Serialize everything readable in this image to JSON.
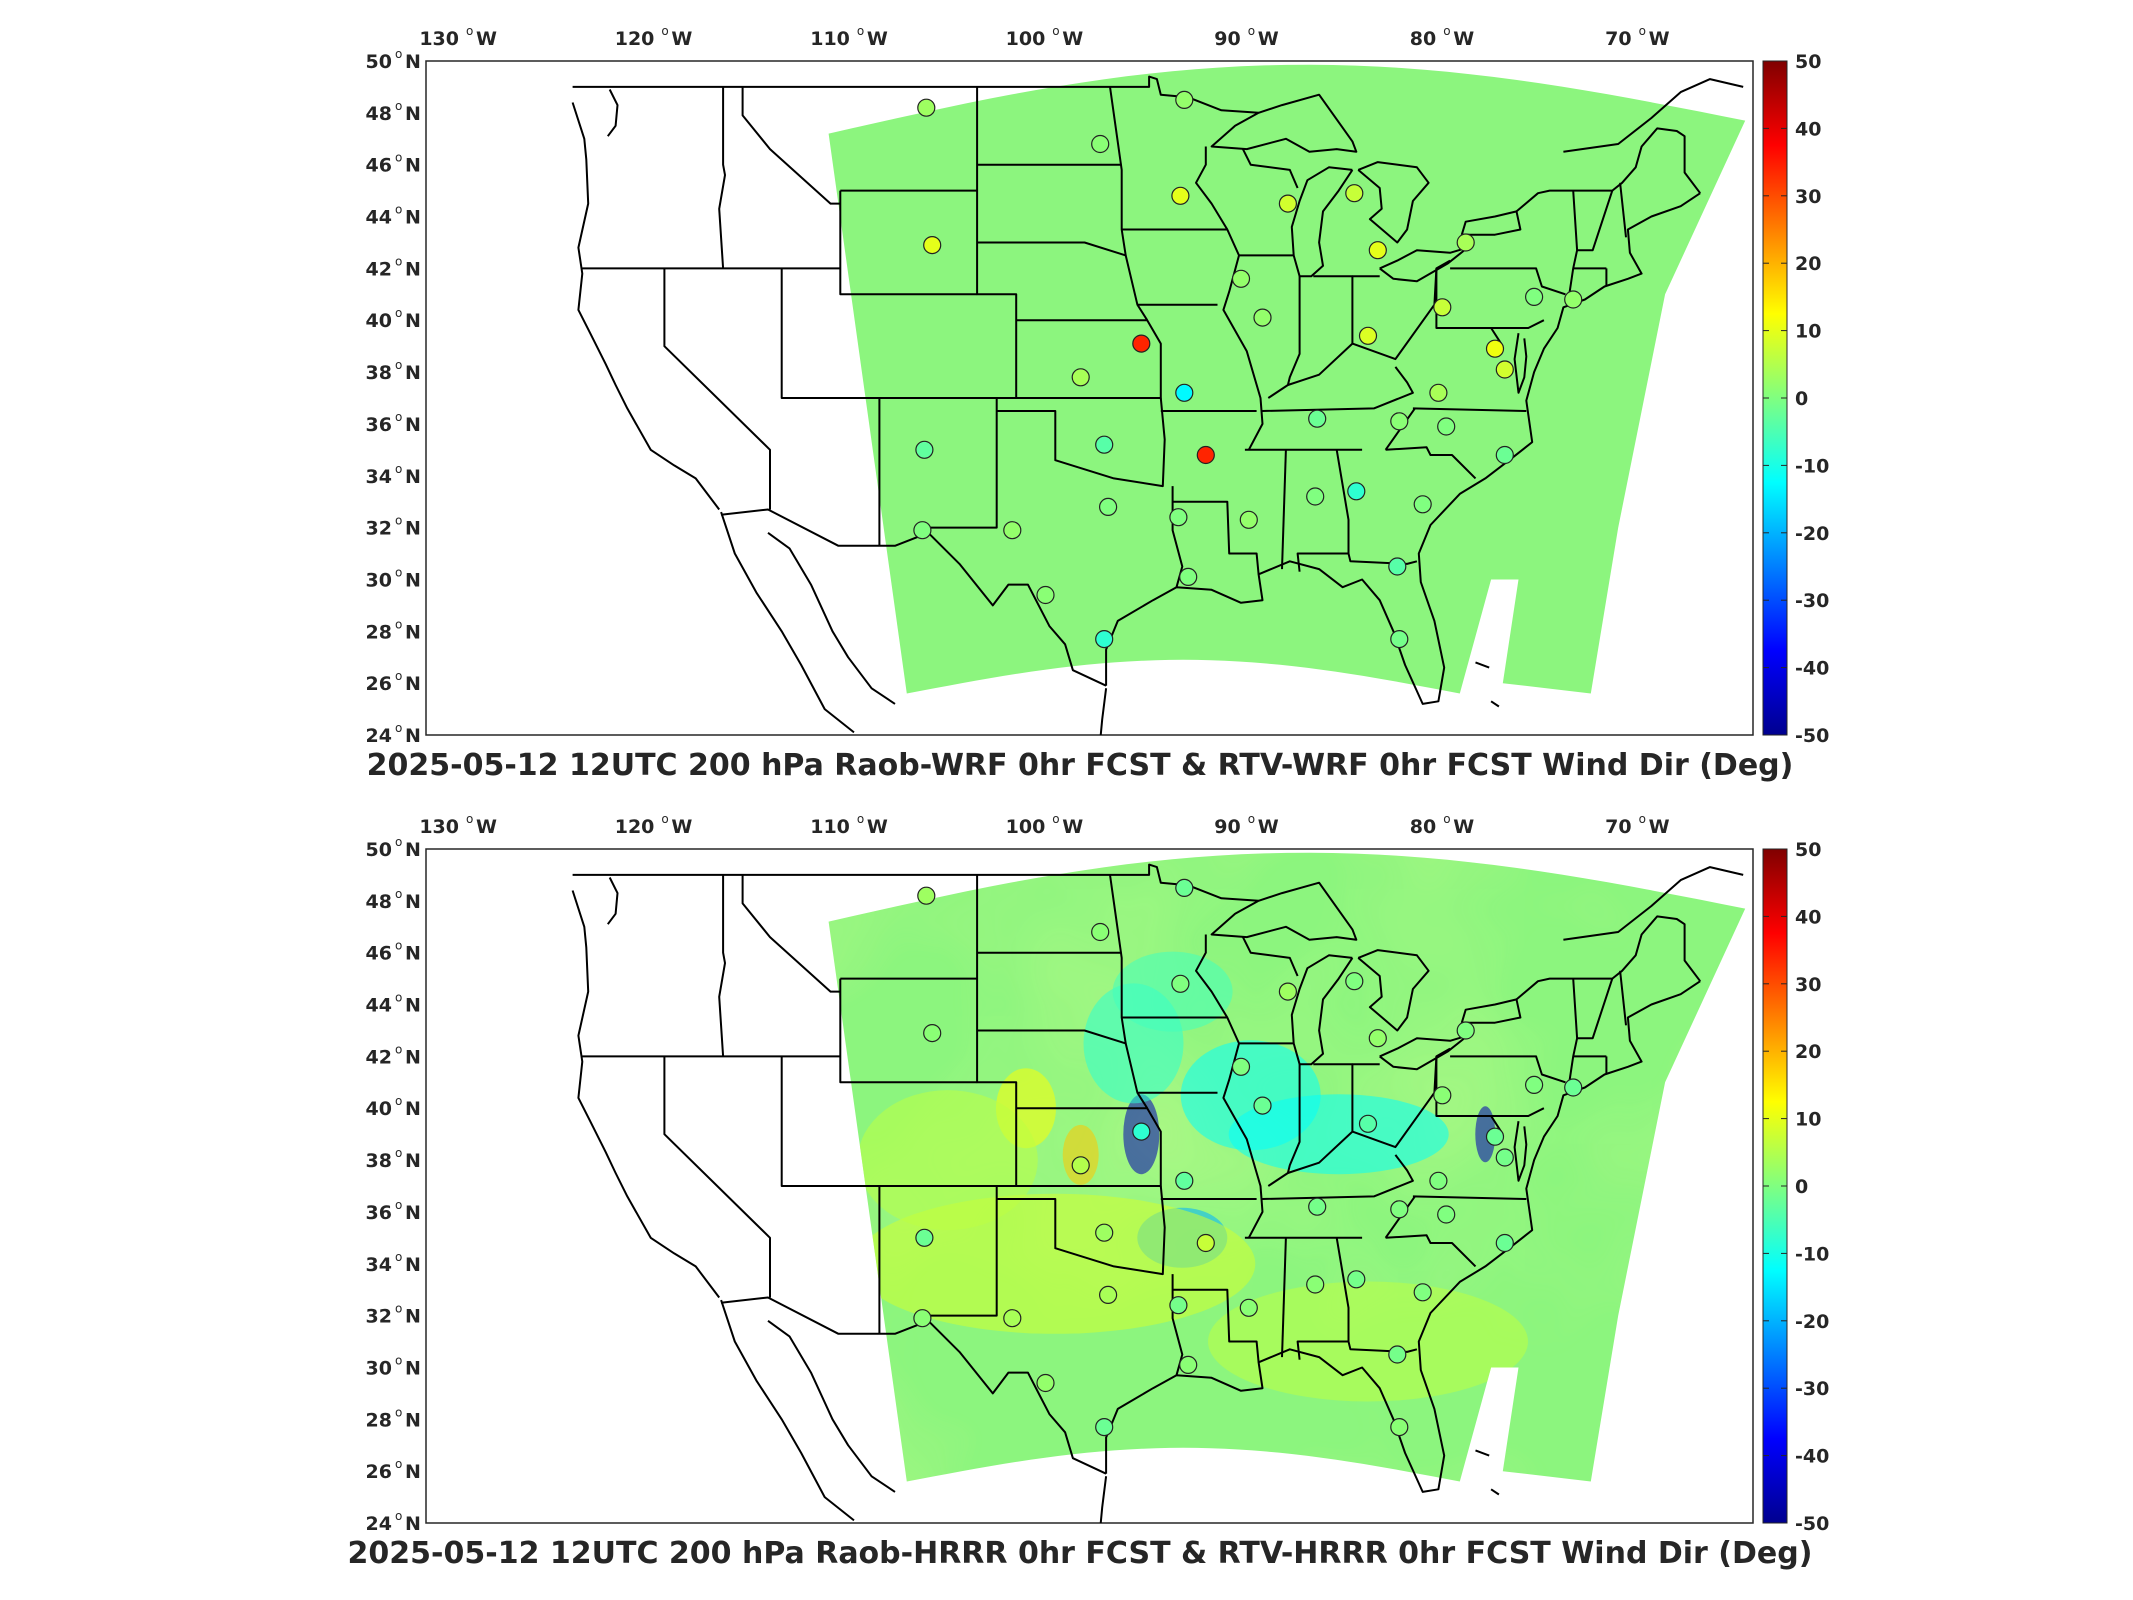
{
  "panels": [
    {
      "id": "wrf",
      "title": "2025-05-12 12UTC 200 hPa Raob-WRF 0hr FCST & RTV-WRF 0hr FCST Wind Dir (Deg)",
      "field": "uniform",
      "stations": [
        {
          "lon": -106.6,
          "lat": 48.2,
          "v": 3
        },
        {
          "lon": -97.7,
          "lat": 46.8,
          "v": 1
        },
        {
          "lon": -93.4,
          "lat": 48.5,
          "v": 2
        },
        {
          "lon": -93.6,
          "lat": 44.8,
          "v": 10
        },
        {
          "lon": -88.1,
          "lat": 44.5,
          "v": 8
        },
        {
          "lon": -84.7,
          "lat": 44.9,
          "v": 7
        },
        {
          "lon": -83.5,
          "lat": 42.7,
          "v": 10
        },
        {
          "lon": -79.0,
          "lat": 43.0,
          "v": 4
        },
        {
          "lon": -90.5,
          "lat": 41.6,
          "v": 2
        },
        {
          "lon": -89.4,
          "lat": 40.1,
          "v": 2
        },
        {
          "lon": -84.0,
          "lat": 39.4,
          "v": 9
        },
        {
          "lon": -80.2,
          "lat": 40.5,
          "v": 7
        },
        {
          "lon": -77.5,
          "lat": 38.9,
          "v": 11
        },
        {
          "lon": -75.5,
          "lat": 40.9,
          "v": 0
        },
        {
          "lon": -73.5,
          "lat": 40.8,
          "v": 2
        },
        {
          "lon": -95.6,
          "lat": 39.1,
          "v": 34
        },
        {
          "lon": -98.7,
          "lat": 37.8,
          "v": 4
        },
        {
          "lon": -93.4,
          "lat": 37.2,
          "v": -13
        },
        {
          "lon": -92.3,
          "lat": 34.8,
          "v": 34
        },
        {
          "lon": -97.5,
          "lat": 35.2,
          "v": -4
        },
        {
          "lon": -106.7,
          "lat": 35.0,
          "v": -3
        },
        {
          "lon": -97.3,
          "lat": 32.8,
          "v": 0
        },
        {
          "lon": -106.8,
          "lat": 31.9,
          "v": 0
        },
        {
          "lon": -102.2,
          "lat": 31.9,
          "v": 2
        },
        {
          "lon": -100.5,
          "lat": 29.4,
          "v": 1
        },
        {
          "lon": -97.5,
          "lat": 27.7,
          "v": -8
        },
        {
          "lon": -93.7,
          "lat": 32.4,
          "v": 0
        },
        {
          "lon": -93.2,
          "lat": 30.1,
          "v": 0
        },
        {
          "lon": -90.1,
          "lat": 32.3,
          "v": 2
        },
        {
          "lon": -86.7,
          "lat": 33.2,
          "v": 0
        },
        {
          "lon": -84.6,
          "lat": 33.4,
          "v": -8
        },
        {
          "lon": -86.6,
          "lat": 36.2,
          "v": -2
        },
        {
          "lon": -82.4,
          "lat": 36.1,
          "v": 1
        },
        {
          "lon": -80.4,
          "lat": 37.2,
          "v": 4
        },
        {
          "lon": -80.0,
          "lat": 35.9,
          "v": 0
        },
        {
          "lon": -81.2,
          "lat": 32.9,
          "v": 0
        },
        {
          "lon": -82.5,
          "lat": 30.5,
          "v": -4
        },
        {
          "lon": -82.4,
          "lat": 27.7,
          "v": -1
        },
        {
          "lon": -77.0,
          "lat": 34.8,
          "v": -2
        },
        {
          "lon": -106.3,
          "lat": 42.9,
          "v": 10
        },
        {
          "lon": -77.0,
          "lat": 38.1,
          "v": 8
        }
      ]
    },
    {
      "id": "hrrr",
      "title": "2025-05-12 12UTC 200 hPa Raob-HRRR 0hr FCST & RTV-HRRR 0hr FCST Wind Dir (Deg)",
      "field": "varied",
      "stations": [
        {
          "lon": -106.6,
          "lat": 48.2,
          "v": 3
        },
        {
          "lon": -97.7,
          "lat": 46.8,
          "v": 1
        },
        {
          "lon": -93.4,
          "lat": 48.5,
          "v": -2
        },
        {
          "lon": -93.6,
          "lat": 44.8,
          "v": 0
        },
        {
          "lon": -88.1,
          "lat": 44.5,
          "v": 3
        },
        {
          "lon": -84.7,
          "lat": 44.9,
          "v": 0
        },
        {
          "lon": -83.5,
          "lat": 42.7,
          "v": 2
        },
        {
          "lon": -79.0,
          "lat": 43.0,
          "v": 0
        },
        {
          "lon": -90.5,
          "lat": 41.6,
          "v": 0
        },
        {
          "lon": -89.4,
          "lat": 40.1,
          "v": -2
        },
        {
          "lon": -84.0,
          "lat": 39.4,
          "v": -4
        },
        {
          "lon": -80.2,
          "lat": 40.5,
          "v": 1
        },
        {
          "lon": -77.5,
          "lat": 38.9,
          "v": -2
        },
        {
          "lon": -75.5,
          "lat": 40.9,
          "v": 0
        },
        {
          "lon": -73.5,
          "lat": 40.8,
          "v": -2
        },
        {
          "lon": -95.6,
          "lat": 39.1,
          "v": -8
        },
        {
          "lon": -98.7,
          "lat": 37.8,
          "v": 5
        },
        {
          "lon": -93.4,
          "lat": 37.2,
          "v": -3
        },
        {
          "lon": -92.3,
          "lat": 34.8,
          "v": 7
        },
        {
          "lon": -97.5,
          "lat": 35.2,
          "v": 3
        },
        {
          "lon": -106.7,
          "lat": 35.0,
          "v": -2
        },
        {
          "lon": -97.3,
          "lat": 32.8,
          "v": 4
        },
        {
          "lon": -106.8,
          "lat": 31.9,
          "v": 1
        },
        {
          "lon": -102.2,
          "lat": 31.9,
          "v": 4
        },
        {
          "lon": -100.5,
          "lat": 29.4,
          "v": 2
        },
        {
          "lon": -97.5,
          "lat": 27.7,
          "v": -2
        },
        {
          "lon": -93.7,
          "lat": 32.4,
          "v": -1
        },
        {
          "lon": -93.2,
          "lat": 30.1,
          "v": 1
        },
        {
          "lon": -90.1,
          "lat": 32.3,
          "v": 1
        },
        {
          "lon": -86.7,
          "lat": 33.2,
          "v": 1
        },
        {
          "lon": -84.6,
          "lat": 33.4,
          "v": -1
        },
        {
          "lon": -86.6,
          "lat": 36.2,
          "v": -1
        },
        {
          "lon": -82.4,
          "lat": 36.1,
          "v": 0
        },
        {
          "lon": -80.4,
          "lat": 37.2,
          "v": 0
        },
        {
          "lon": -80.0,
          "lat": 35.9,
          "v": 0
        },
        {
          "lon": -81.2,
          "lat": 32.9,
          "v": 0
        },
        {
          "lon": -82.5,
          "lat": 30.5,
          "v": -1
        },
        {
          "lon": -82.4,
          "lat": 27.7,
          "v": 1
        },
        {
          "lon": -77.0,
          "lat": 34.8,
          "v": -2
        },
        {
          "lon": -106.3,
          "lat": 42.9,
          "v": 1
        },
        {
          "lon": -77.0,
          "lat": 38.1,
          "v": -1
        }
      ]
    }
  ],
  "x_ticks": [
    {
      "lon": -130,
      "label": "130",
      "hemi": "W"
    },
    {
      "lon": -120,
      "label": "120",
      "hemi": "W"
    },
    {
      "lon": -110,
      "label": "110",
      "hemi": "W"
    },
    {
      "lon": -100,
      "label": "100",
      "hemi": "W"
    },
    {
      "lon": -90,
      "label": "90",
      "hemi": "W"
    },
    {
      "lon": -80,
      "label": "80",
      "hemi": "W"
    },
    {
      "lon": -70,
      "label": "70",
      "hemi": "W"
    }
  ],
  "y_ticks": [
    {
      "lat": 50,
      "label": "50",
      "hemi": "N"
    },
    {
      "lat": 48,
      "label": "48",
      "hemi": "N"
    },
    {
      "lat": 46,
      "label": "46",
      "hemi": "N"
    },
    {
      "lat": 44,
      "label": "44",
      "hemi": "N"
    },
    {
      "lat": 42,
      "label": "42",
      "hemi": "N"
    },
    {
      "lat": 40,
      "label": "40",
      "hemi": "N"
    },
    {
      "lat": 38,
      "label": "38",
      "hemi": "N"
    },
    {
      "lat": 36,
      "label": "36",
      "hemi": "N"
    },
    {
      "lat": 34,
      "label": "34",
      "hemi": "N"
    },
    {
      "lat": 32,
      "label": "32",
      "hemi": "N"
    },
    {
      "lat": 30,
      "label": "30",
      "hemi": "N"
    },
    {
      "lat": 28,
      "label": "28",
      "hemi": "N"
    },
    {
      "lat": 26,
      "label": "26",
      "hemi": "N"
    },
    {
      "lat": 24,
      "label": "24",
      "hemi": "N"
    }
  ],
  "colorbar": {
    "min": -50,
    "max": 50,
    "ticks": [
      "50",
      "40",
      "30",
      "20",
      "10",
      "0",
      "-10",
      "-20",
      "-30",
      "-40",
      "-50"
    ],
    "colormap": "jet"
  },
  "map_style": {
    "line_color": "#000000",
    "background": "#ffffff"
  }
}
